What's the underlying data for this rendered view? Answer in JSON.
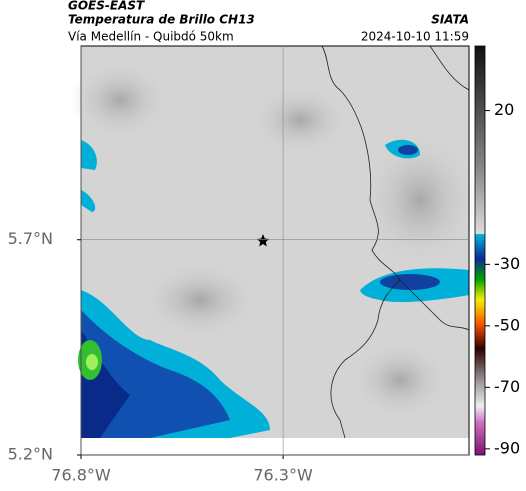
{
  "header": {
    "title": "GOES-EAST",
    "subtitle": "Temperatura de Brillo CH13",
    "source": "SIATA",
    "location": "Vía Medellín - Quibdó 50km",
    "datetime": "2024-10-10 11:59"
  },
  "map": {
    "xlim": [
      -76.8,
      -75.84
    ],
    "ylim": [
      5.2,
      6.15
    ],
    "xticks": [
      {
        "value": -76.8,
        "label": "76.8°W"
      },
      {
        "value": -76.3,
        "label": "76.3°W"
      }
    ],
    "yticks": [
      {
        "value": 5.7,
        "label": "5.7°N"
      },
      {
        "value": 5.2,
        "label": "5.2°N"
      }
    ]
  },
  "colorbar": {
    "lim": [
      -92,
      41
    ],
    "ticks": [
      20,
      -30,
      -50,
      -70,
      -90
    ]
  }
}
